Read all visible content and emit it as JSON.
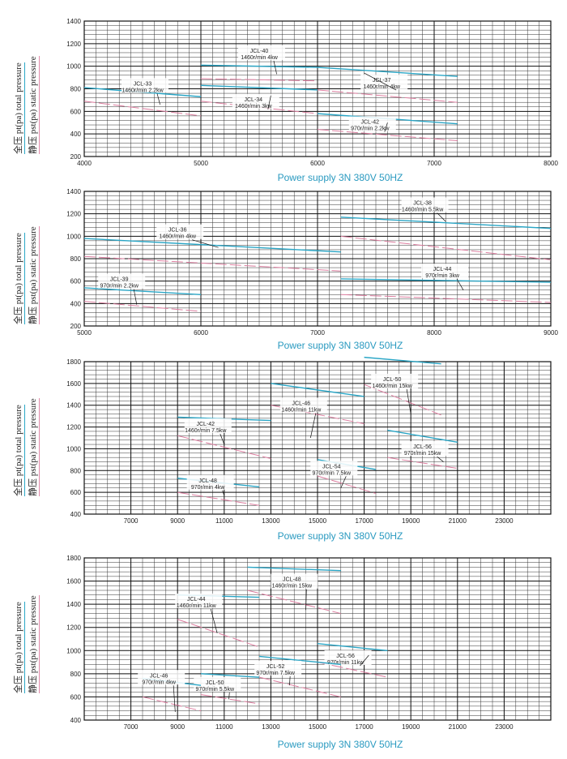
{
  "colors": {
    "total": "#2aa6c6",
    "static": "#dd7ea0",
    "caption": "#2a9ac0",
    "grid": "#222222"
  },
  "side_labels": {
    "total": "全压 pt(pa) total pressure",
    "static": "静压 pst(pa) static pressure"
  },
  "chart_data": [
    {
      "type": "line",
      "caption": "Power supply   3N 380V  50HZ",
      "xlim": [
        4000,
        8000
      ],
      "ylim": [
        200,
        1400
      ],
      "x_ticks": [
        4000,
        5000,
        6000,
        7000,
        8000
      ],
      "x_tick_labels": [
        "4000",
        "5000",
        "6000",
        "7000",
        "8000"
      ],
      "y_ticks": [
        200,
        400,
        600,
        800,
        1000,
        1200,
        1400
      ],
      "grid": true,
      "series": [
        {
          "model": "JCL-33",
          "spec": "1460r/min 2.2kw",
          "total": [
            [
              4000,
              810
            ],
            [
              5000,
              730
            ]
          ],
          "static": [
            [
              4000,
              690
            ],
            [
              5000,
              560
            ]
          ],
          "label_x": 4500,
          "label_y": 780,
          "pointer": [
            4650,
            660
          ]
        },
        {
          "model": "JCL-40",
          "spec": "1460r/min 4kw",
          "total": [
            [
              5000,
              1010
            ],
            [
              6000,
              990
            ]
          ],
          "static": [
            [
              5000,
              890
            ],
            [
              6000,
              870
            ]
          ],
          "label_x": 5500,
          "label_y": 1070,
          "pointer": [
            5650,
            930
          ]
        },
        {
          "model": "JCL-34",
          "spec": "1460r/min 3kw",
          "total": [
            [
              5000,
              830
            ],
            [
              6000,
              790
            ]
          ],
          "static": [
            [
              5000,
              690
            ],
            [
              6000,
              580
            ]
          ],
          "label_x": 5450,
          "label_y": 640,
          "pointer": [
            5600,
            740
          ]
        },
        {
          "model": "JCL-37",
          "spec": "1460r/min 4kw",
          "total": [
            [
              6000,
              990
            ],
            [
              7200,
              910
            ]
          ],
          "static": [
            [
              6000,
              790
            ],
            [
              7200,
              680
            ]
          ],
          "label_x": 6550,
          "label_y": 810,
          "pointer": [
            6400,
            940
          ]
        },
        {
          "model": "JCL-42",
          "spec": "970r/min 2.2kw",
          "total": [
            [
              6000,
              580
            ],
            [
              7200,
              490
            ]
          ],
          "static": [
            [
              6000,
              440
            ],
            [
              7200,
              340
            ]
          ],
          "label_x": 6450,
          "label_y": 440,
          "pointer": [
            6600,
            500
          ]
        }
      ]
    },
    {
      "type": "line",
      "caption": "Power supply   3N 380V  50HZ",
      "xlim": [
        5000,
        9000
      ],
      "ylim": [
        200,
        1400
      ],
      "x_ticks": [
        5000,
        6000,
        7000,
        8000,
        9000
      ],
      "x_tick_labels": [
        "5000",
        "6000",
        "7000",
        "8000",
        "9000"
      ],
      "y_ticks": [
        200,
        400,
        600,
        800,
        1000,
        1200,
        1400
      ],
      "grid": true,
      "series": [
        {
          "model": "JCL-36",
          "spec": "1460r/min 4kw",
          "total": [
            [
              5000,
              980
            ],
            [
              7200,
              860
            ]
          ],
          "static": [
            [
              5000,
              820
            ],
            [
              7200,
              690
            ]
          ],
          "label_x": 5800,
          "label_y": 990,
          "pointer": [
            6150,
            900
          ]
        },
        {
          "model": "JCL-39",
          "spec": "970r/min 2.2kw",
          "total": [
            [
              5000,
              540
            ],
            [
              6000,
              480
            ]
          ],
          "static": [
            [
              5000,
              420
            ],
            [
              6000,
              330
            ]
          ],
          "label_x": 5300,
          "label_y": 550,
          "pointer": [
            5450,
            390
          ]
        },
        {
          "model": "JCL-38",
          "spec": "1460r/min 5.5kw",
          "total": [
            [
              7200,
              1170
            ],
            [
              9000,
              1070
            ]
          ],
          "static": [
            [
              7200,
              1000
            ],
            [
              9000,
              790
            ]
          ],
          "label_x": 7900,
          "label_y": 1230,
          "pointer": [
            8100,
            1130
          ]
        },
        {
          "model": "JCL-44",
          "spec": "970r/min 3kw",
          "total": [
            [
              7200,
              620
            ],
            [
              9000,
              590
            ]
          ],
          "static": [
            [
              7200,
              480
            ],
            [
              9000,
              410
            ]
          ],
          "label_x": 8070,
          "label_y": 640,
          "pointer": [
            8250,
            520
          ]
        }
      ]
    },
    {
      "type": "line",
      "caption": "Power supply   3N 380V  50HZ",
      "xlim": [
        5000,
        25000
      ],
      "ylim": [
        400,
        1800
      ],
      "x_ticks": [
        7000,
        9000,
        11000,
        13000,
        15000,
        17000,
        19000,
        21000,
        23000
      ],
      "x_tick_labels": [
        "7000",
        "9000",
        "11000",
        "13000",
        "15000",
        "17000",
        "19000",
        "21000",
        "23000"
      ],
      "y_ticks": [
        400,
        600,
        800,
        1000,
        1200,
        1400,
        1600,
        1800
      ],
      "grid": true,
      "series": [
        {
          "model": "JCL-48",
          "spec": "970r/min 4kw",
          "total": [
            [
              9000,
              730
            ],
            [
              12500,
              650
            ]
          ],
          "static": [
            [
              9000,
              600
            ],
            [
              12500,
              480
            ]
          ],
          "label_x": 10300,
          "label_y": 640,
          "pointer": [
            11000,
            570
          ]
        },
        {
          "model": "JCL-42",
          "spec": "1460r/min 7.5kw",
          "total": [
            [
              9000,
              1290
            ],
            [
              13000,
              1260
            ]
          ],
          "static": [
            [
              9000,
              1120
            ],
            [
              13000,
              910
            ]
          ],
          "label_x": 10200,
          "label_y": 1160,
          "pointer": [
            11000,
            1040
          ]
        },
        {
          "model": "JCL-46",
          "spec": "1460r/min 11kw",
          "total": [
            [
              13000,
              1600
            ],
            [
              17000,
              1480
            ]
          ],
          "static": [
            [
              13000,
              1400
            ],
            [
              17000,
              1230
            ]
          ],
          "label_x": 14300,
          "label_y": 1350,
          "pointer": [
            14700,
            1100
          ]
        },
        {
          "model": "JCL-50",
          "spec": "1460r/min 15kw",
          "total": [
            [
              17000,
              1840
            ],
            [
              20300,
              1780
            ]
          ],
          "static": [
            [
              17000,
              1590
            ],
            [
              20300,
              1310
            ]
          ],
          "label_x": 18200,
          "label_y": 1570,
          "pointer": [
            19000,
            1320
          ]
        },
        {
          "model": "JCL-54",
          "spec": "970r/min 7.5kw",
          "total": [
            [
              15000,
              900
            ],
            [
              17500,
              810
            ]
          ],
          "static": [
            [
              15000,
              750
            ],
            [
              17500,
              590
            ]
          ],
          "label_x": 15600,
          "label_y": 770,
          "pointer": [
            16000,
            640
          ]
        },
        {
          "model": "JCL-56",
          "spec": "970r/min 15kw",
          "total": [
            [
              18000,
              1170
            ],
            [
              21000,
              1060
            ]
          ],
          "static": [
            [
              18000,
              920
            ],
            [
              21000,
              820
            ]
          ],
          "label_x": 19500,
          "label_y": 950,
          "pointer": [
            20400,
            880
          ]
        }
      ]
    },
    {
      "type": "line",
      "caption": "Power supply   3N 380V  50HZ",
      "xlim": [
        5000,
        25000
      ],
      "ylim": [
        400,
        1800
      ],
      "x_ticks": [
        7000,
        9000,
        11000,
        13000,
        15000,
        17000,
        19000,
        21000,
        23000
      ],
      "x_tick_labels": [
        "7000",
        "9000",
        "11000",
        "13000",
        "15000",
        "17000",
        "19000",
        "21000",
        "23000"
      ],
      "y_ticks": [
        400,
        600,
        800,
        1000,
        1200,
        1400,
        1600,
        1800
      ],
      "grid": true,
      "series": [
        {
          "model": "JCL-48",
          "spec": "1460r/min 15kw",
          "total": [
            [
              12000,
              1720
            ],
            [
              16000,
              1690
            ]
          ],
          "static": [
            [
              12000,
              1520
            ],
            [
              16000,
              1320
            ]
          ],
          "label_x": 13900,
          "label_y": 1550,
          "pointer": [
            14500,
            1350
          ]
        },
        {
          "model": "JCL-44",
          "spec": "1460r/min 11kw",
          "total": [
            [
              9000,
              1480
            ],
            [
              12500,
              1460
            ]
          ],
          "static": [
            [
              9000,
              1270
            ],
            [
              12500,
              1030
            ]
          ],
          "label_x": 9800,
          "label_y": 1380,
          "pointer": [
            10700,
            1150
          ]
        },
        {
          "model": "JCL-56",
          "spec": "970r/min 11kw",
          "total": [
            [
              15000,
              1060
            ],
            [
              18000,
              1000
            ]
          ],
          "static": [
            [
              15000,
              900
            ],
            [
              18000,
              770
            ]
          ],
          "label_x": 16200,
          "label_y": 890,
          "pointer": [
            17200,
            960
          ]
        },
        {
          "model": "JCL-52",
          "spec": "970r/min 7.5kw",
          "total": [
            [
              12500,
              950
            ],
            [
              16000,
              880
            ]
          ],
          "static": [
            [
              12500,
              770
            ],
            [
              16000,
              600
            ]
          ],
          "label_x": 13200,
          "label_y": 800,
          "pointer": [
            13800,
            700
          ]
        },
        {
          "model": "JCL-50",
          "spec": "970r/min 5.5kw",
          "total": [
            [
              10000,
              800
            ],
            [
              12500,
              770
            ]
          ],
          "static": [
            [
              10000,
              620
            ],
            [
              12500,
              540
            ]
          ],
          "label_x": 10600,
          "label_y": 660,
          "pointer": [
            11200,
            580
          ]
        },
        {
          "model": "JCL-46",
          "spec": "970r/min 4kw",
          "total": [
            [
              7500,
              760
            ],
            [
              10000,
              700
            ]
          ],
          "static": [
            [
              7500,
              600
            ],
            [
              10000,
              480
            ]
          ],
          "label_x": 8200,
          "label_y": 720,
          "pointer": [
            8900,
            470
          ]
        }
      ]
    }
  ]
}
